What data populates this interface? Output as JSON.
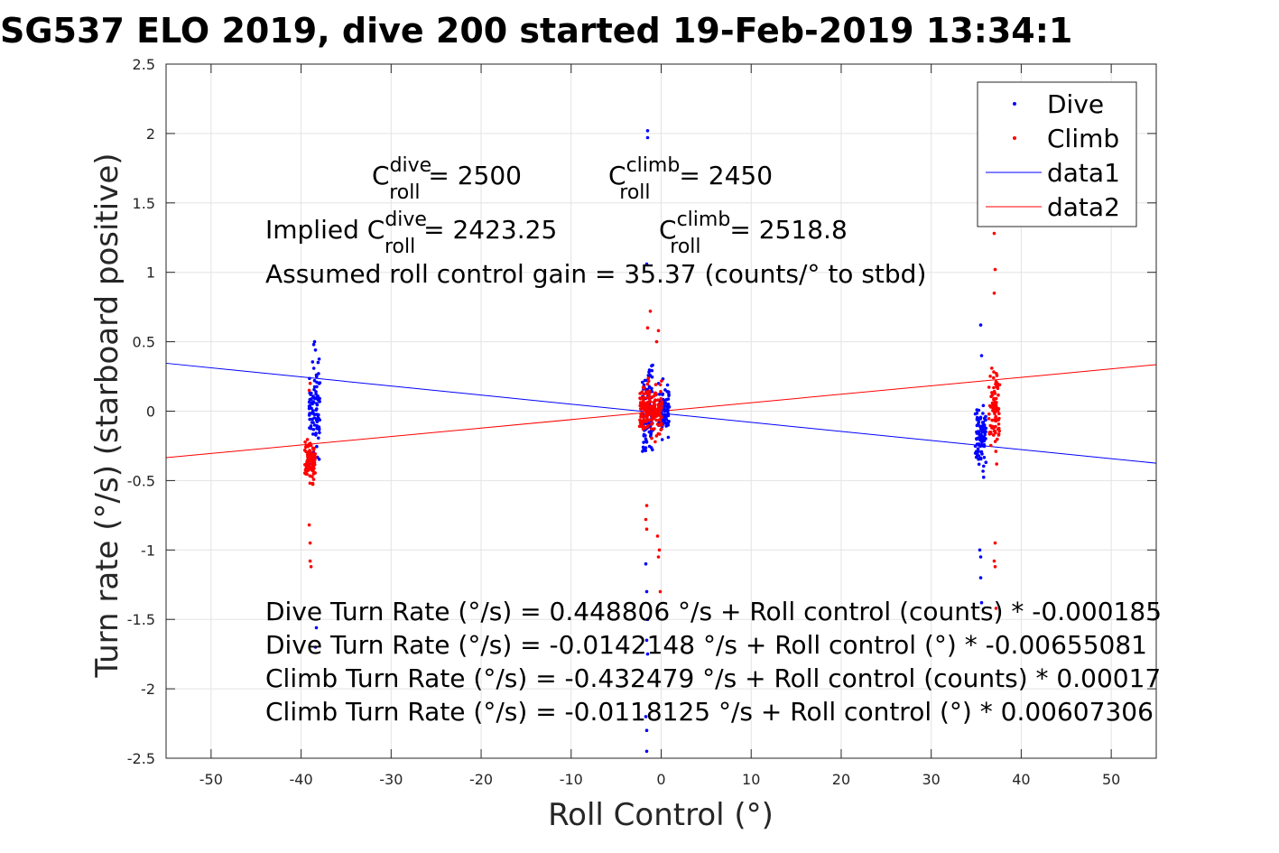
{
  "chart_data": {
    "type": "scatter",
    "title": "SG537 ELO 2019, dive 200 started 19-Feb-2019 13:34:1",
    "xlabel": "Roll Control (°)",
    "ylabel": "Turn rate (°/s) (starboard positive)",
    "xlim": [
      -55,
      55
    ],
    "ylim": [
      -2.5,
      2.5
    ],
    "x_ticks": [
      "-50",
      "-40",
      "-30",
      "-20",
      "-10",
      "0",
      "10",
      "20",
      "30",
      "40",
      "50"
    ],
    "x_tick_values": [
      -50,
      -40,
      -30,
      -20,
      -10,
      0,
      10,
      20,
      30,
      40,
      50
    ],
    "y_ticks": [
      "2.5",
      "2",
      "1.5",
      "1",
      "0.5",
      "0",
      "-0.5",
      "-1",
      "-1.5",
      "-2",
      "-2.5"
    ],
    "y_tick_values": [
      2.5,
      2,
      1.5,
      1,
      0.5,
      0,
      -0.5,
      -1,
      -1.5,
      -2,
      -2.5
    ],
    "grid": true,
    "legend_position": "top-right",
    "legend": [
      "Dive",
      "Climb",
      "data1",
      "data2"
    ],
    "colors": {
      "dive": "#0000ff",
      "climb": "#ff0000"
    },
    "series": [
      {
        "name": "Dive",
        "style": "points",
        "color": "#0000ff",
        "clusters": [
          {
            "x": -38.5,
            "y_center": 0.0,
            "y_spread": 0.5,
            "points": [
              [
                -38.5,
                0.5
              ],
              [
                -38.6,
                0.48
              ],
              [
                -38.4,
                0.44
              ],
              [
                -38.5,
                0.22
              ],
              [
                -38.3,
                -1.56
              ],
              [
                -38.4,
                -1.7
              ]
            ]
          },
          {
            "x": -1.5,
            "y_center": 0.0,
            "y_spread": 0.5,
            "points": [
              [
                -1.5,
                2.02
              ],
              [
                -1.5,
                1.97
              ],
              [
                -1.6,
                1.06
              ],
              [
                -1.7,
                -1.1
              ],
              [
                -1.6,
                -1.3
              ],
              [
                -1.5,
                -1.5
              ],
              [
                -1.6,
                -1.65
              ],
              [
                -1.5,
                -1.75
              ],
              [
                -1.7,
                -2.2
              ],
              [
                -1.6,
                -2.3
              ],
              [
                -1.6,
                -2.45
              ]
            ]
          },
          {
            "x": 0.3,
            "y_center": 0.0,
            "y_spread": 0.3
          },
          {
            "x": 35.5,
            "y_center": -0.2,
            "y_spread": 0.4,
            "points": [
              [
                35.5,
                0.62
              ],
              [
                35.6,
                0.4
              ],
              [
                35.4,
                -1.0
              ],
              [
                35.5,
                -1.2
              ],
              [
                35.6,
                -1.38
              ],
              [
                35.5,
                -1.05
              ]
            ]
          }
        ]
      },
      {
        "name": "Climb",
        "style": "points",
        "color": "#ff0000",
        "clusters": [
          {
            "x": -39.0,
            "y_center": -0.35,
            "y_spread": 0.25,
            "points": [
              [
                -39.0,
                0.2
              ],
              [
                -39.1,
                0.15
              ],
              [
                -39.0,
                -0.95
              ],
              [
                -39.0,
                -1.08
              ],
              [
                -38.9,
                -1.12
              ],
              [
                -39.1,
                -0.82
              ]
            ]
          },
          {
            "x": -1.8,
            "y_center": 0.0,
            "y_spread": 0.35,
            "points": [
              [
                -1.2,
                0.72
              ],
              [
                -1.5,
                0.6
              ],
              [
                -1.6,
                -0.68
              ],
              [
                -1.7,
                -0.78
              ],
              [
                -1.6,
                -0.85
              ]
            ]
          },
          {
            "x": -0.5,
            "y_center": 0.0,
            "y_spread": 0.3,
            "points": [
              [
                -0.5,
                0.5
              ],
              [
                -0.3,
                0.58
              ],
              [
                -0.4,
                -0.9
              ],
              [
                -0.3,
                -1.05
              ],
              [
                -0.1,
                -1.3
              ],
              [
                -0.2,
                -1.0
              ]
            ]
          },
          {
            "x": 37.0,
            "y_center": 0.0,
            "y_spread": 0.5,
            "points": [
              [
                37.0,
                1.28
              ],
              [
                37.1,
                1.02
              ],
              [
                37.0,
                0.85
              ],
              [
                37.1,
                -0.95
              ],
              [
                37.0,
                -1.08
              ],
              [
                37.1,
                -1.12
              ],
              [
                37.2,
                -1.42
              ]
            ]
          }
        ]
      },
      {
        "name": "data1",
        "style": "line",
        "color": "#0000ff",
        "x": [
          -55,
          55
        ],
        "y": [
          0.345,
          -0.375
        ]
      },
      {
        "name": "data2",
        "style": "line",
        "color": "#ff0000",
        "x": [
          -55,
          55
        ],
        "y": [
          -0.335,
          0.335
        ]
      }
    ],
    "annotations": {
      "c_roll_dive": {
        "base": "C",
        "sup": "dive",
        "sub": "roll",
        "value": " = 2500"
      },
      "c_roll_climb": {
        "base": "C",
        "sup": "climb",
        "sub": "roll",
        "value": " = 2450"
      },
      "implied_prefix": "Implied ",
      "implied_dive": {
        "base": "C",
        "sup": "dive",
        "sub": "roll",
        "value": " = 2423.25"
      },
      "implied_climb": {
        "base": "C",
        "sup": "climb",
        "sub": "roll",
        "value": " = 2518.8"
      },
      "gain": "Assumed roll control gain = 35.37 (counts/° to stbd)",
      "fits": [
        "Dive Turn Rate (°/s) = 0.448806 °/s + Roll control (counts) * -0.000185",
        "Dive Turn Rate (°/s) = -0.0142148 °/s + Roll control (°) * -0.00655081",
        "Climb Turn Rate (°/s) = -0.432479 °/s + Roll control (counts) * 0.00017",
        "Climb Turn Rate (°/s) = -0.0118125 °/s + Roll control (°) * 0.00607306"
      ]
    }
  }
}
